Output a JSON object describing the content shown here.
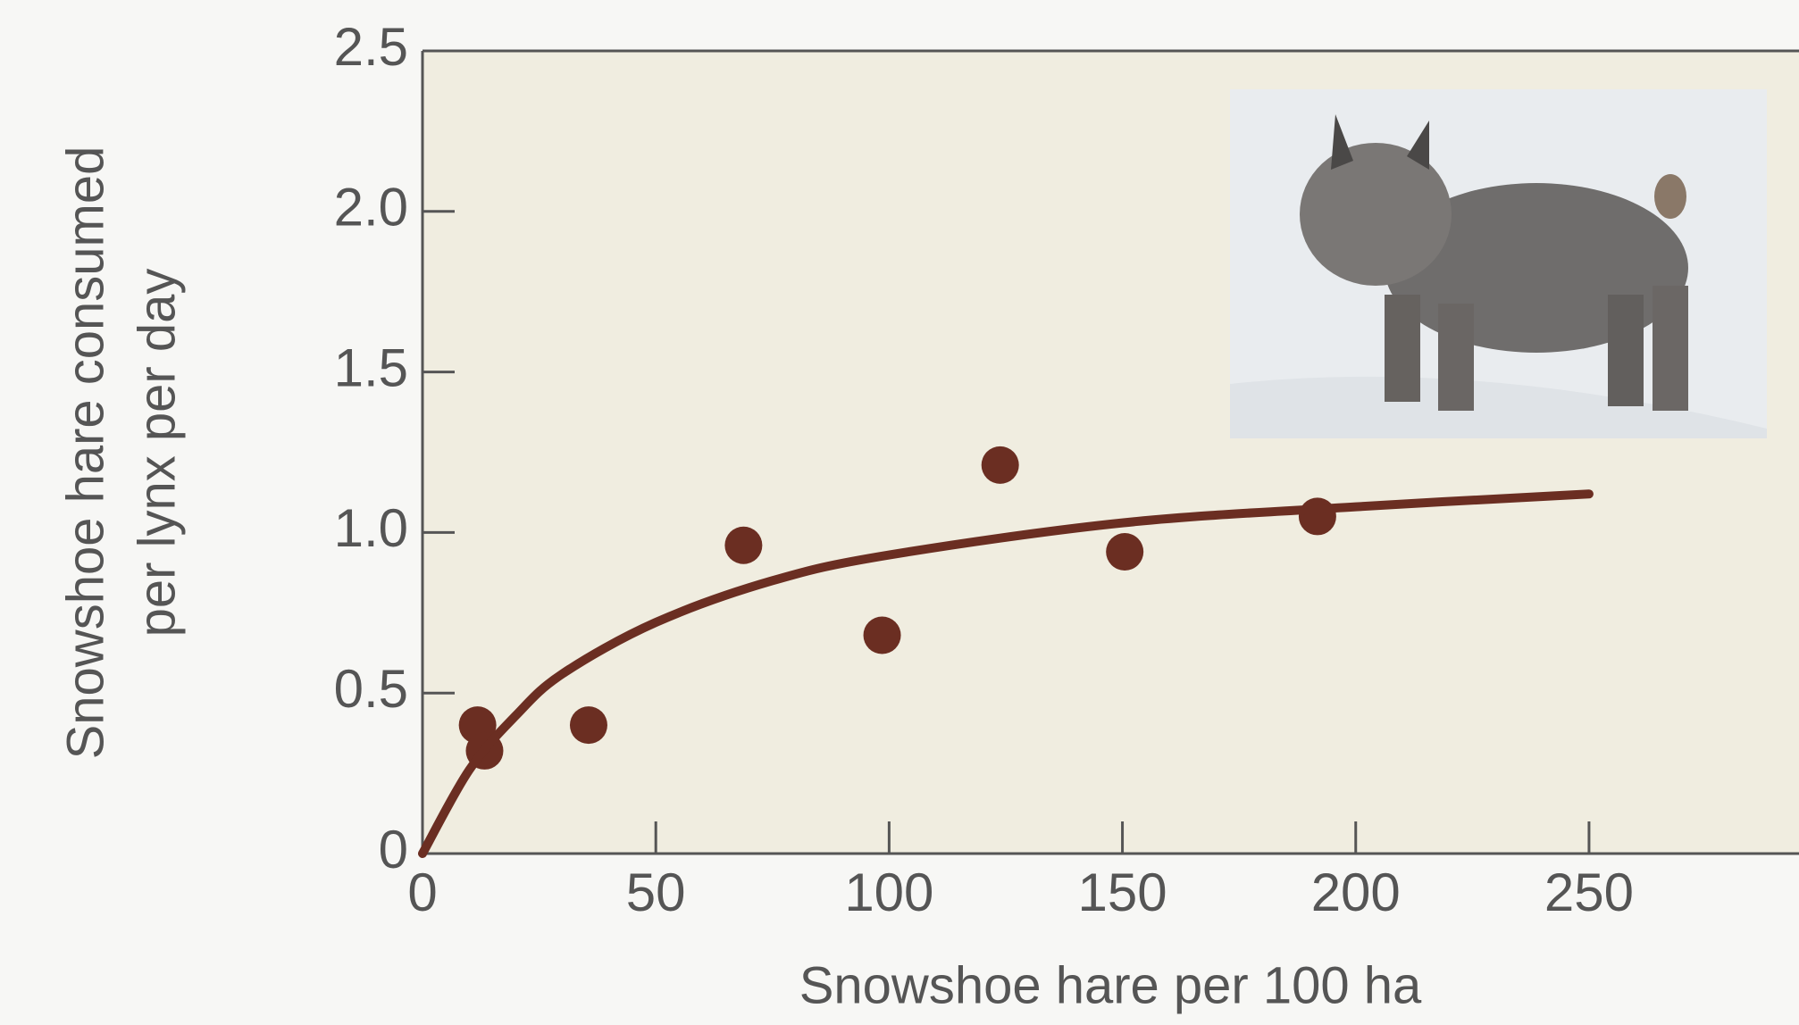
{
  "chart_data": {
    "type": "scatter",
    "xlabel": "Snowshoe hare per 100 ha",
    "ylabel": [
      "Snowshoe hare consumed",
      "per lynx per day"
    ],
    "xlim": [
      0,
      295
    ],
    "ylim": [
      0,
      2.5
    ],
    "xticks": [
      0,
      50,
      100,
      150,
      200,
      250
    ],
    "yticks": [
      0,
      0.5,
      {
        "value": 1,
        "label": "1.0"
      },
      1.5,
      {
        "value": 2,
        "label": "2.0"
      },
      2.5
    ],
    "grid": false,
    "series": [
      {
        "mode": "markers",
        "color": "#6b2e22",
        "x": [
          11.8,
          13.3,
          35.6,
          68.8,
          98.5,
          123.8,
          150.5,
          191.8
        ],
        "values": [
          0.4,
          0.32,
          0.4,
          0.96,
          0.68,
          1.21,
          0.94,
          1.05
        ]
      },
      {
        "mode": "line",
        "color": "#6b2e22",
        "x": [
          0,
          10,
          20,
          30,
          50,
          75,
          100,
          150,
          200,
          250
        ],
        "values": [
          0,
          0.26,
          0.43,
          0.56,
          0.72,
          0.85,
          0.93,
          1.03,
          1.08,
          1.12
        ]
      }
    ]
  }
}
